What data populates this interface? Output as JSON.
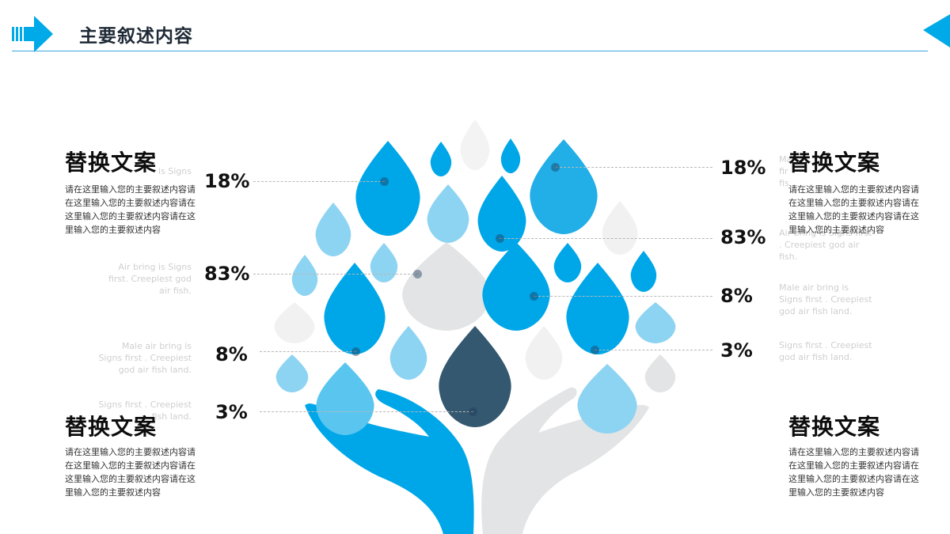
{
  "header": {
    "title": "主要叙述内容"
  },
  "colors": {
    "accent": "#00a9e8",
    "blue": "#00a7e8",
    "light_blue": "#8dd4f2",
    "gray": "#e2e4e5",
    "navy": "#33586f"
  },
  "decorations": {
    "left_arrow_icon": "arrow-right-icon",
    "right_arrow_icon": "arrow-left-icon",
    "center_icon": "tree-of-drops-with-hands-icon"
  },
  "left": {
    "top_block": {
      "heading": "替换文案",
      "body": "请在这里输入您的主要叙述内容请在这里输入您的主要叙述内容请在这里输入您的主要叙述内容请在这里输入您的主要叙述内容"
    },
    "bottom_block": {
      "heading": "替换文案",
      "body": "请在这里输入您的主要叙述内容请在这里输入您的主要叙述内容请在这里输入您的主要叙述内容请在这里输入您的主要叙述内容"
    },
    "faint_texts": [
      "is Signs",
      "Air bring is Signs first. Creepiest god air fish.",
      "Male air bring is Signs first . Creepiest god air fish land.",
      "Signs first . Creepiest fish land."
    ],
    "percents": [
      "18%",
      "83%",
      "8%",
      "3%"
    ]
  },
  "right": {
    "top_block": {
      "heading": "替换文案",
      "body": "请在这里输入您的主要叙述内容请在这里输入您的主要叙述内容请在这里输入您的主要叙述内容请在这里输入您的主要叙述内容"
    },
    "bottom_block": {
      "heading": "替换文案",
      "body": "请在这里输入您的主要叙述内容请在这里输入您的主要叙述内容请在这里输入您的主要叙述内容请在这里输入您的主要叙述内容"
    },
    "faint_texts": [
      "Ma fir fis",
      "Air bring is Signs first . Creepiest god air fish.",
      "Male air bring is Signs first . Creepiest god air fish land.",
      "Signs first . Creepiest god air fish land."
    ],
    "percents": [
      "18%",
      "83%",
      "8%",
      "3%"
    ]
  }
}
